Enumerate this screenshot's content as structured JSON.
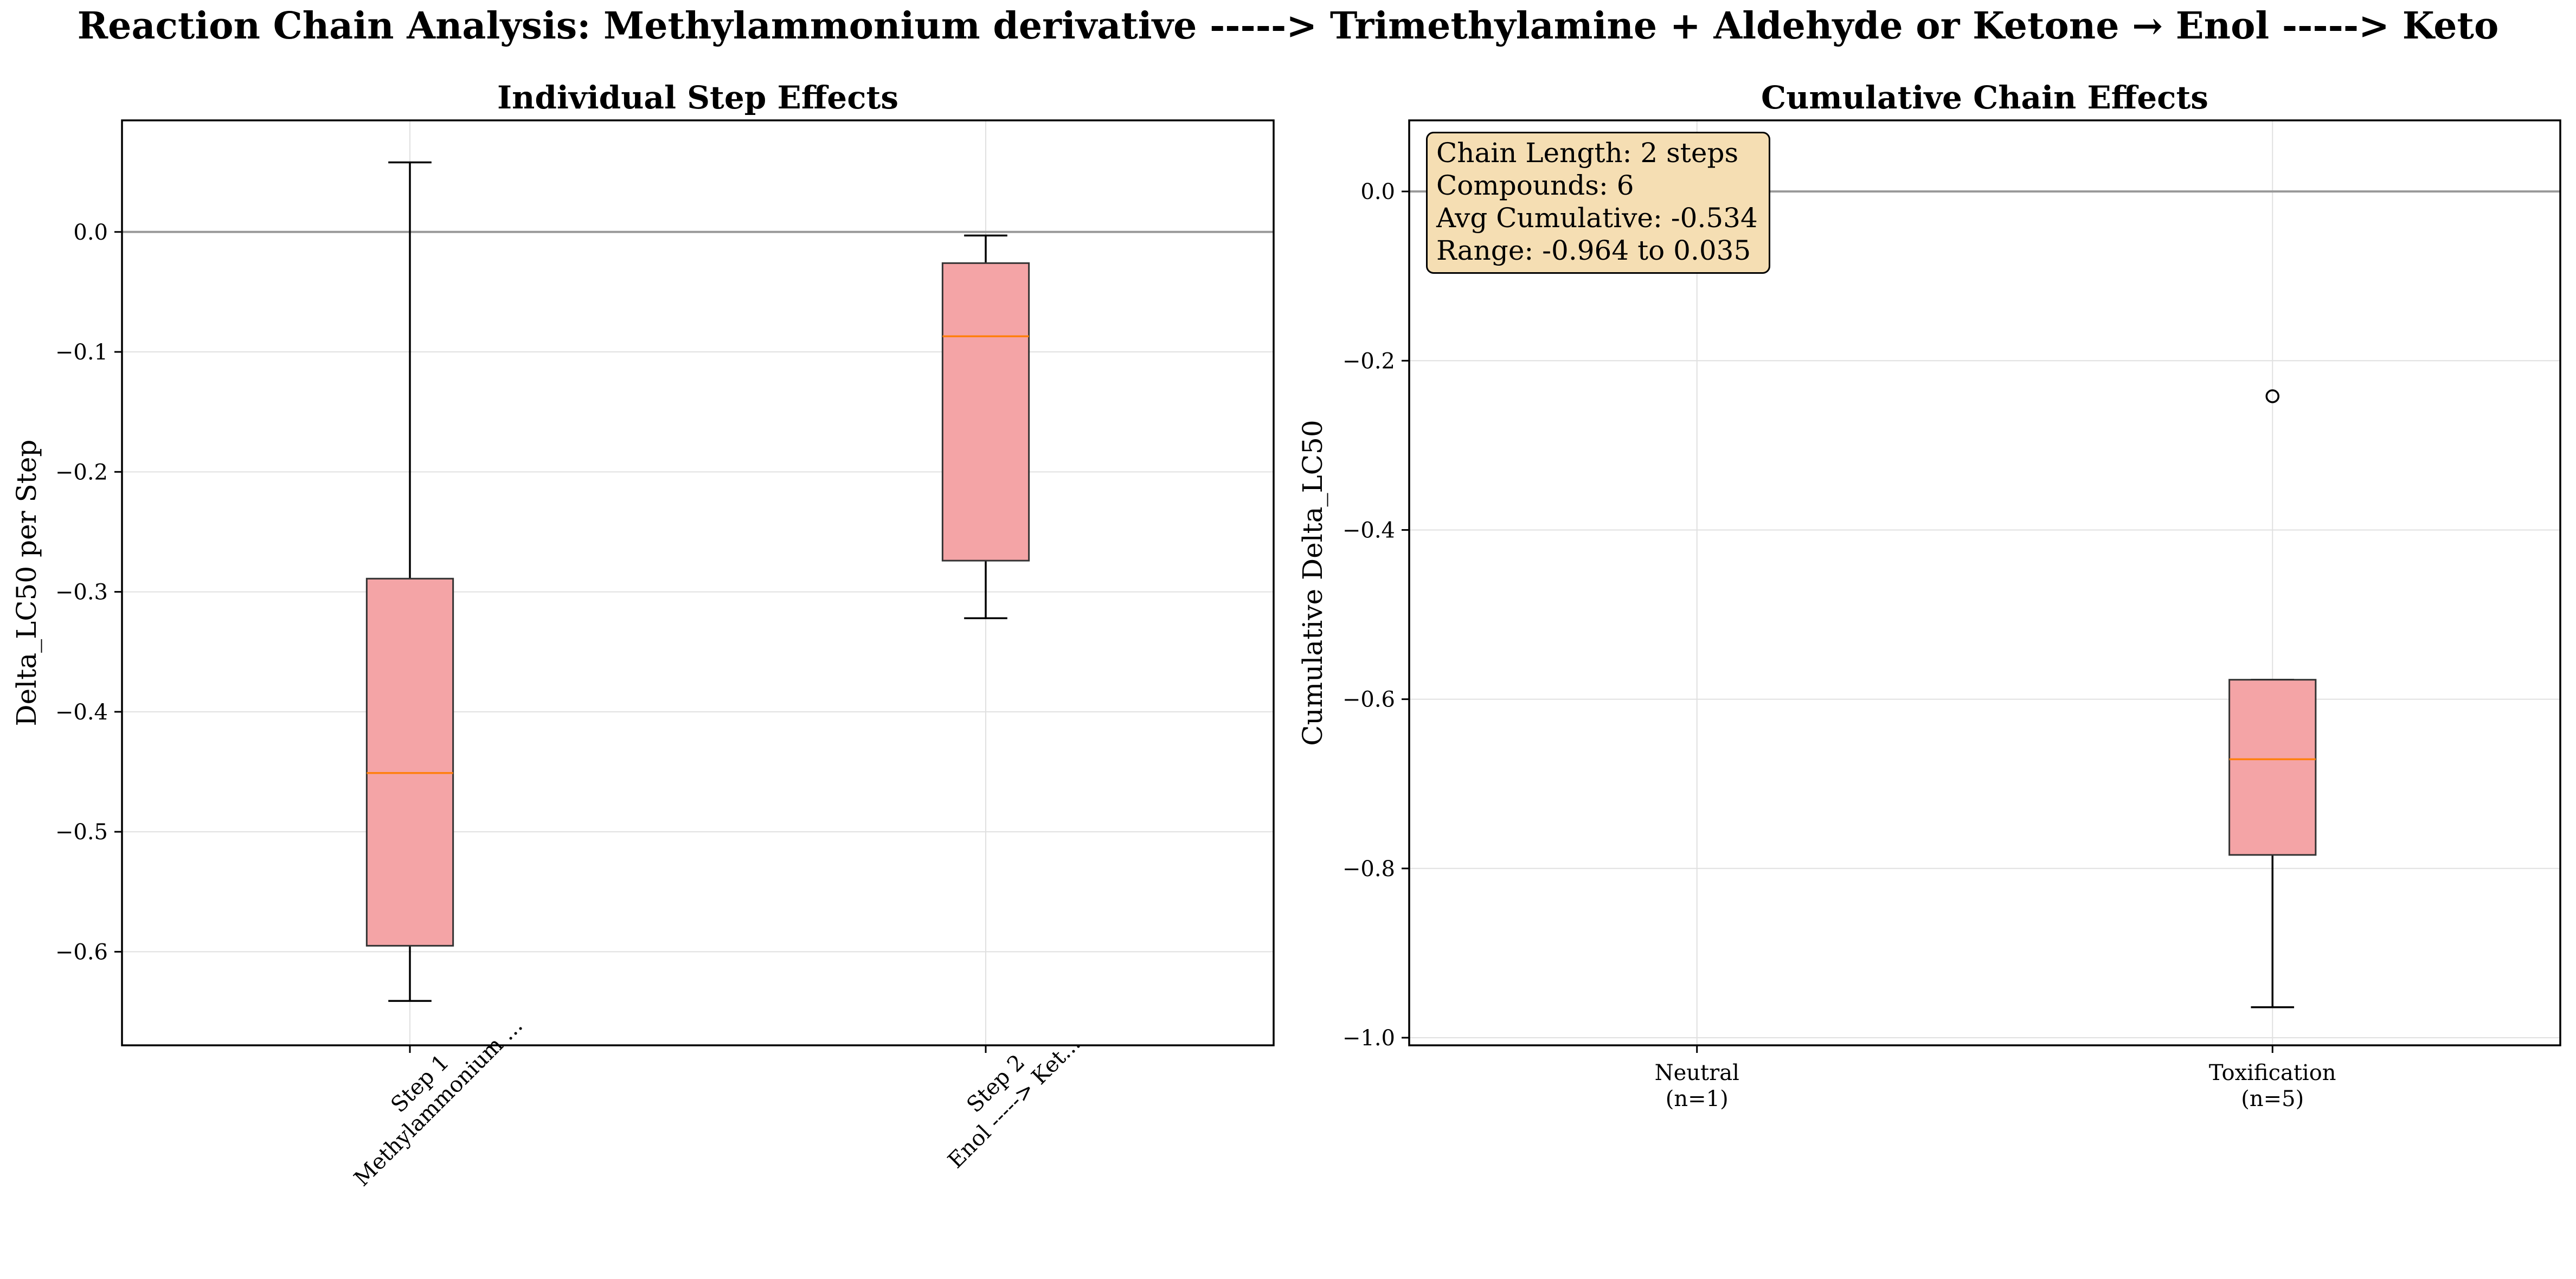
{
  "figure": {
    "title": "Reaction Chain Analysis: Methylammonium derivative -----> Trimethylamine + Aldehyde or Ketone → Enol -----> Keto"
  },
  "colors": {
    "box_fill": "#f4a4a6",
    "median": "#ff7f0e",
    "zero_line": "#999999",
    "grid": "#e0e0e0",
    "annotation_bg": "#f5deb3"
  },
  "chart_data": [
    {
      "type": "box",
      "title": "Individual Step Effects",
      "xlabel": "",
      "ylabel": "Delta_LC50 per Step",
      "ylim": [
        -0.678,
        0.093
      ],
      "yticks": [
        0.0,
        -0.1,
        -0.2,
        -0.3,
        -0.4,
        -0.5,
        -0.6
      ],
      "ytick_labels": [
        "0.0",
        "−0.1",
        "−0.2",
        "−0.3",
        "−0.4",
        "−0.5",
        "−0.6"
      ],
      "reference_line": 0.0,
      "grid": true,
      "categories": [
        [
          "Step 1",
          "Methylammonium ..."
        ],
        [
          "Step 2",
          "Enol -----> Ket..."
        ]
      ],
      "boxes": [
        {
          "whisker_low": -0.641,
          "q1": -0.595,
          "median": -0.451,
          "q3": -0.289,
          "whisker_high": 0.058,
          "outliers": []
        },
        {
          "whisker_low": -0.322,
          "q1": -0.274,
          "median": -0.087,
          "q3": -0.026,
          "whisker_high": -0.003,
          "outliers": []
        }
      ]
    },
    {
      "type": "box",
      "title": "Cumulative Chain Effects",
      "xlabel": "",
      "ylabel": "Cumulative Delta_LC50",
      "ylim": [
        -1.009,
        0.084
      ],
      "yticks": [
        0.0,
        -0.2,
        -0.4,
        -0.6,
        -0.8,
        -1.0
      ],
      "ytick_labels": [
        "0.0",
        "−0.2",
        "−0.4",
        "−0.6",
        "−0.8",
        "−1.0"
      ],
      "reference_line": 0.0,
      "grid": true,
      "categories": [
        [
          "Neutral",
          "(n=1)"
        ],
        [
          "Toxification",
          "(n=5)"
        ]
      ],
      "boxes": [
        null,
        {
          "whisker_low": -0.964,
          "q1": -0.784,
          "median": -0.671,
          "q3": -0.577,
          "whisker_high": -0.577,
          "outliers": [
            -0.242
          ]
        }
      ],
      "annotation": [
        "Chain Length: 2 steps",
        "Compounds: 6",
        "Avg Cumulative: -0.534",
        "Range: -0.964 to 0.035"
      ]
    }
  ]
}
